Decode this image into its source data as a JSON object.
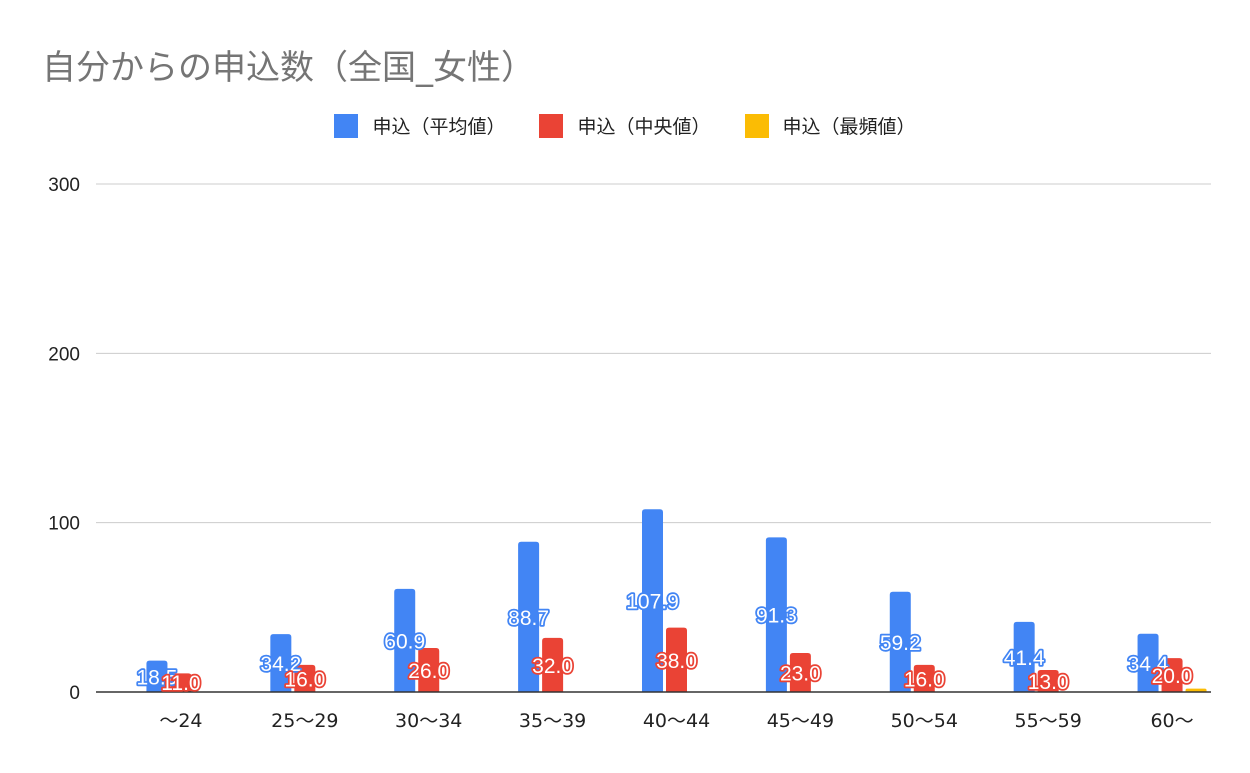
{
  "chart_data": {
    "type": "bar",
    "title": "自分からの申込数（全国_女性）",
    "categories": [
      "～24",
      "25～29",
      "30～34",
      "35～39",
      "40～44",
      "45～49",
      "50～54",
      "55～59",
      "60～"
    ],
    "series": [
      {
        "name": "申込（平均値）",
        "color": "#4285f4",
        "values": [
          18.5,
          34.2,
          60.9,
          88.7,
          107.9,
          91.3,
          59.2,
          41.4,
          34.4
        ]
      },
      {
        "name": "申込（中央値）",
        "color": "#ea4335",
        "values": [
          11.0,
          16.0,
          26.0,
          32.0,
          38.0,
          23.0,
          16.0,
          13.0,
          20.0
        ]
      },
      {
        "name": "申込（最頻値）",
        "color": "#fbbc04",
        "values": [
          0,
          0,
          0,
          0,
          0,
          0,
          0,
          0,
          2
        ]
      }
    ],
    "data_labels": {
      "series_0": [
        "18.5",
        "34.2",
        "60.9",
        "88.7",
        "107.9",
        "91.3",
        "59.2",
        "41.4",
        "34.4"
      ],
      "series_1": [
        "11.0",
        "16.0",
        "26.0",
        "32.0",
        "38.0",
        "23.0",
        "16.0",
        "13.0",
        "20.0"
      ]
    },
    "ylim": [
      0,
      300
    ],
    "yticks": [
      0,
      100,
      200,
      300
    ],
    "xlabel": "",
    "ylabel": "",
    "grid": true,
    "legend_position": "top"
  }
}
